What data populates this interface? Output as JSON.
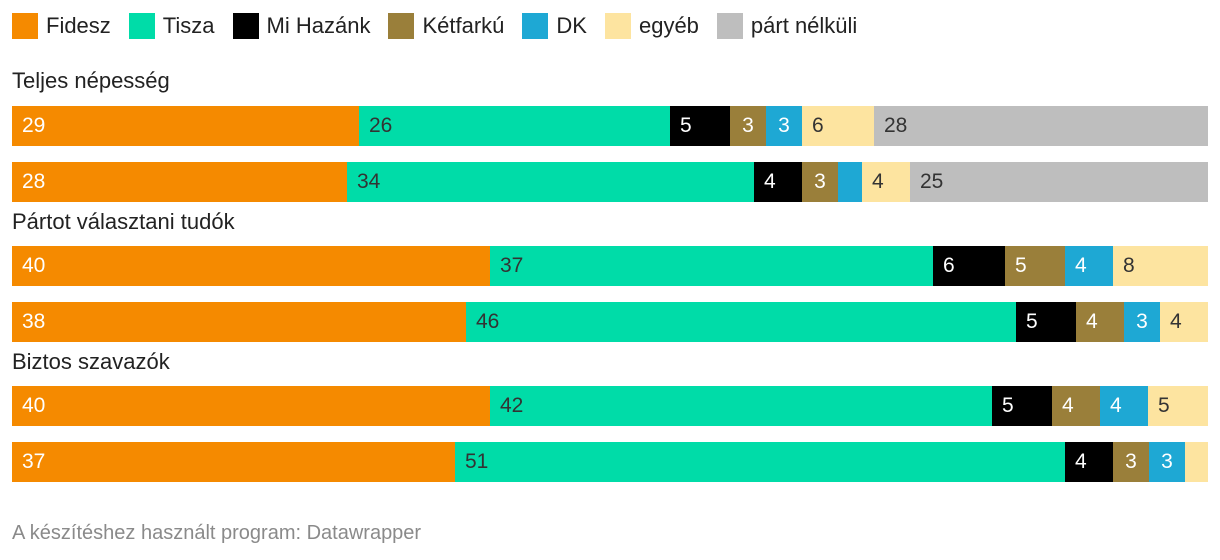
{
  "chart_data": {
    "type": "bar",
    "orientation": "horizontal",
    "stacked": true,
    "unit": "%",
    "parties": [
      {
        "name": "Fidesz",
        "color": "#f58a00",
        "text_color": "#ffffff"
      },
      {
        "name": "Tisza",
        "color": "#00dca8",
        "text_color": "#333333"
      },
      {
        "name": "Mi Hazánk",
        "color": "#000000",
        "text_color": "#ffffff"
      },
      {
        "name": "Kétfarkú",
        "color": "#9a7f3a",
        "text_color": "#ffffff"
      },
      {
        "name": "DK",
        "color": "#1ea8d4",
        "text_color": "#ffffff"
      },
      {
        "name": "egyéb",
        "color": "#fde4a0",
        "text_color": "#333333"
      },
      {
        "name": "párt nélküli",
        "color": "#bebebe",
        "text_color": "#333333"
      }
    ],
    "groups": [
      {
        "title": "Teljes népesség",
        "rows": [
          {
            "values": [
              29,
              26,
              5,
              3,
              3,
              6,
              28
            ],
            "labels": [
              "29",
              "26",
              "5",
              "3",
              "3",
              "6",
              "28"
            ]
          },
          {
            "values": [
              28,
              34,
              4,
              3,
              2,
              4,
              25
            ],
            "labels": [
              "28",
              "34",
              "4",
              "3",
              "",
              "4",
              "25"
            ]
          }
        ]
      },
      {
        "title": "Pártot választani tudók",
        "rows": [
          {
            "values": [
              40,
              37,
              6,
              5,
              4,
              8,
              0
            ],
            "labels": [
              "40",
              "37",
              "6",
              "5",
              "4",
              "8",
              ""
            ]
          },
          {
            "values": [
              38,
              46,
              5,
              4,
              3,
              4,
              0
            ],
            "labels": [
              "38",
              "46",
              "5",
              "4",
              "3",
              "4",
              ""
            ]
          }
        ]
      },
      {
        "title": "Biztos szavazók",
        "rows": [
          {
            "values": [
              40,
              42,
              5,
              4,
              4,
              5,
              0
            ],
            "labels": [
              "40",
              "42",
              "5",
              "4",
              "4",
              "5",
              ""
            ]
          },
          {
            "values": [
              37,
              51,
              4,
              3,
              3,
              2,
              0
            ],
            "labels": [
              "37",
              "51",
              "4",
              "3",
              "3",
              "",
              ""
            ]
          }
        ]
      }
    ]
  },
  "footer": "A készítéshez használt program: Datawrapper"
}
